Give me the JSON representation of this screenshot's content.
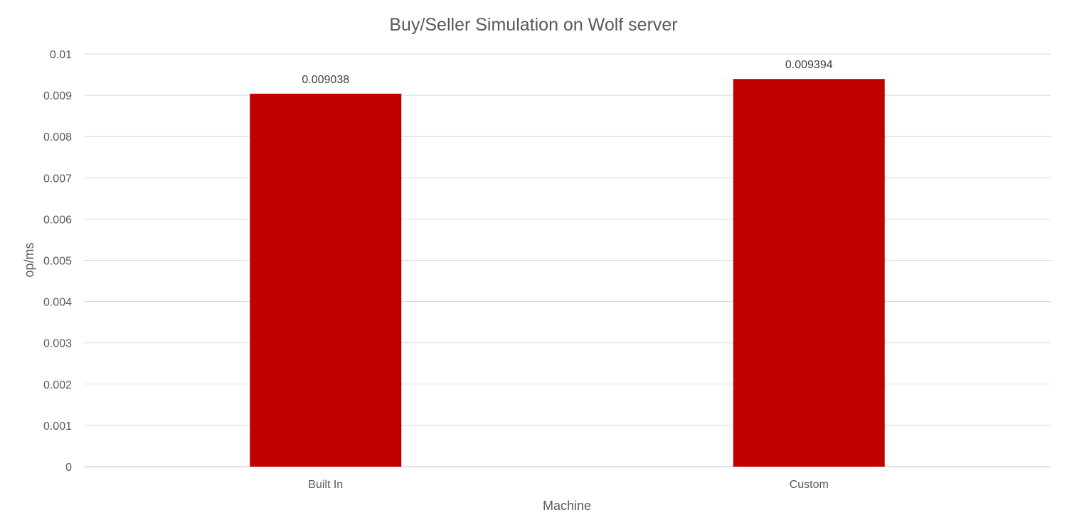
{
  "chart_data": {
    "type": "bar",
    "title": "Buy/Seller Simulation on Wolf server",
    "xlabel": "Machine",
    "ylabel": "op/ms",
    "categories": [
      "Built In",
      "Custom"
    ],
    "values": [
      0.009038,
      0.009394
    ],
    "data_labels": [
      "0.009038",
      "0.009394"
    ],
    "ylim": [
      0,
      0.01
    ],
    "y_ticks": [
      0,
      0.001,
      0.002,
      0.003,
      0.004,
      0.005,
      0.006,
      0.007,
      0.008,
      0.009,
      0.01
    ],
    "y_tick_labels": [
      "0",
      "0.001",
      "0.002",
      "0.003",
      "0.004",
      "0.005",
      "0.006",
      "0.007",
      "0.008",
      "0.009",
      "0.01"
    ],
    "grid": true,
    "legend": "none",
    "bar_color": "#c00000"
  }
}
